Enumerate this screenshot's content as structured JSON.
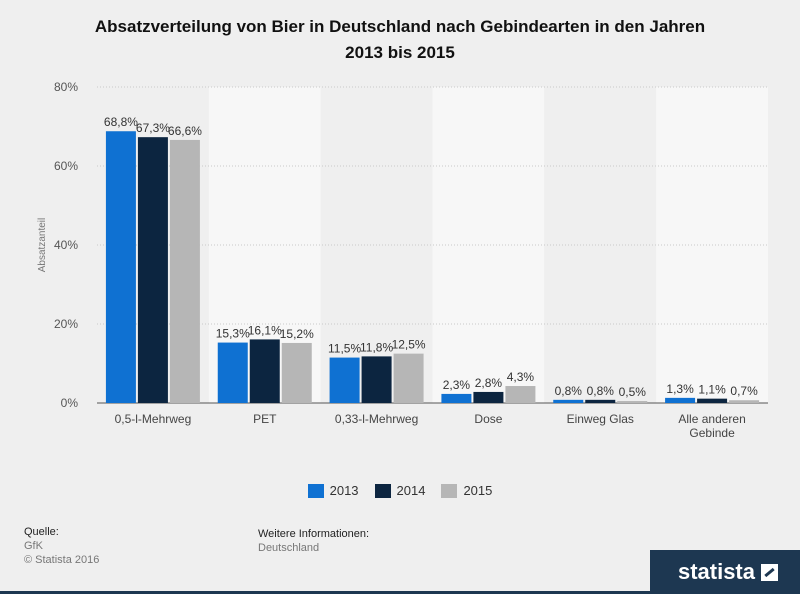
{
  "title_line1": "Absatzverteilung von Bier in Deutschland nach Gebindearten in den Jahren",
  "title_line2": "2013 bis 2015",
  "chart_data": {
    "type": "bar",
    "categories": [
      "0,5-l-Mehrweg",
      "PET",
      "0,33-l-Mehrweg",
      "Dose",
      "Einweg Glas",
      "Alle anderen Gebinde"
    ],
    "series": [
      {
        "name": "2013",
        "color": "#0f71d2",
        "values": [
          68.8,
          15.3,
          11.5,
          2.3,
          0.8,
          1.3
        ],
        "labels": [
          "68,8%",
          "15,3%",
          "11,5%",
          "2,3%",
          "0,8%",
          "1,3%"
        ]
      },
      {
        "name": "2014",
        "color": "#0c2540",
        "values": [
          67.3,
          16.1,
          11.8,
          2.8,
          0.8,
          1.1
        ],
        "labels": [
          "67,3%",
          "16,1%",
          "11,8%",
          "2,8%",
          "0,8%",
          "1,1%"
        ]
      },
      {
        "name": "2015",
        "color": "#b6b6b6",
        "values": [
          66.6,
          15.2,
          12.5,
          4.3,
          0.5,
          0.7
        ],
        "labels": [
          "66,6%",
          "15,2%",
          "12,5%",
          "4,3%",
          "0,5%",
          "0,7%"
        ]
      }
    ],
    "ylabel": "Absatzanteil",
    "ylim": [
      0,
      80
    ],
    "yticks": [
      0,
      20,
      40,
      60,
      80
    ],
    "ytick_labels": [
      "0%",
      "20%",
      "40%",
      "60%",
      "80%"
    ],
    "grid": true,
    "legend": "bottom-center"
  },
  "footer": {
    "source_label": "Quelle:",
    "source_value": "GfK",
    "copyright": "© Statista 2016",
    "info_label": "Weitere Informationen:",
    "info_value": "Deutschland",
    "brand": "statista"
  }
}
